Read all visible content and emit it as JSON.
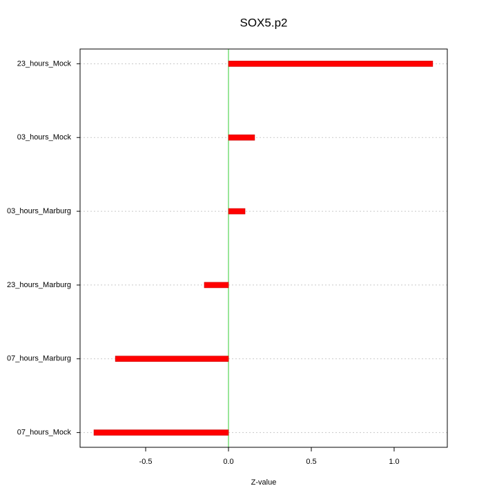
{
  "chart_data": {
    "type": "hbar",
    "title": "SOX5.p2",
    "x_label": "Z-value",
    "categories": [
      "23_hours_Mock",
      "03_hours_Mock",
      "03_hours_Marburg",
      "23_hours_Marburg",
      "07_hours_Marburg",
      "07_hours_Mock"
    ],
    "values": [
      1.233,
      0.158,
      0.1,
      -0.146,
      -0.683,
      -0.8125
    ],
    "color": "#ff0000",
    "xlim": [
      -0.896,
      1.321
    ],
    "xticks": [
      -0.5,
      {
        "value": 0,
        "label": "0.0"
      },
      0.5,
      {
        "value": 1,
        "label": "1.0"
      }
    ],
    "grid": true
  }
}
